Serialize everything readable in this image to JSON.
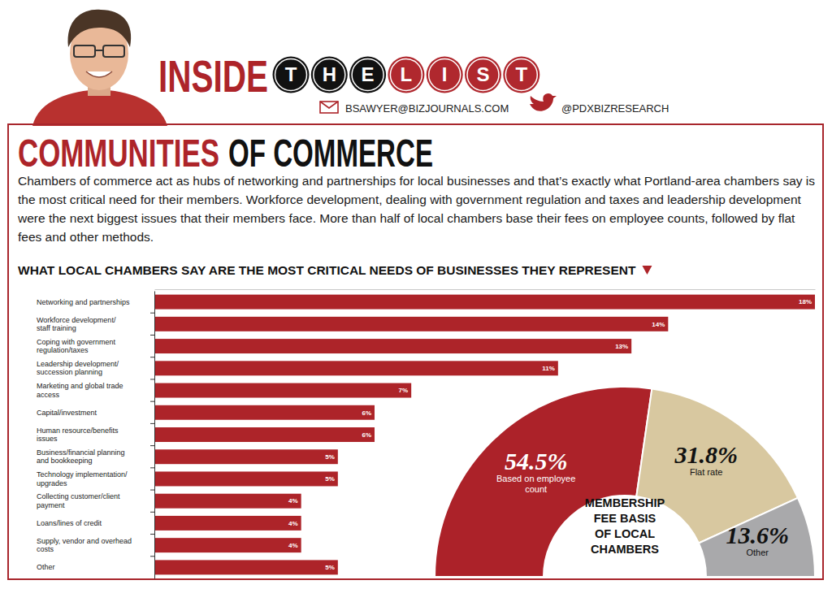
{
  "header": {
    "column": "INSIDE",
    "list_letters": [
      "T",
      "H",
      "E",
      "L",
      "I",
      "S",
      "T"
    ],
    "email": "BSAWYER@BIZJOURNALS.COM",
    "twitter": "@PDXBIZRESEARCH"
  },
  "headline": {
    "highlight": "COMMUNITIES",
    "rest": "OF COMMERCE"
  },
  "intro": "Chambers of commerce act as hubs of networking and partnerships for local businesses and that’s exactly what Portland-area chambers say is the most critical need for their members. Workforce development, dealing with government regulation and taxes and leadership development were the next biggest issues that their members face. More than half of local chambers base their fees on employee counts, followed by flat fees and other methods.",
  "chart_data": [
    {
      "type": "bar",
      "orientation": "horizontal",
      "title": "WHAT LOCAL CHAMBERS SAY ARE THE MOST CRITICAL NEEDS OF BUSINESSES THEY REPRESENT",
      "categories": [
        "Networking and partnerships",
        "Workforce development/ staff training",
        "Coping with government regulation/taxes",
        "Leadership development/ succession planning",
        "Marketing and global trade access",
        "Capital/investment",
        "Human resource/benefits issues",
        "Business/financial planning and bookkeeping",
        "Technology implementation/ upgrades",
        "Collecting customer/client payment",
        "Loans/lines of credit",
        "Supply, vendor and overhead costs",
        "Other"
      ],
      "values": [
        18,
        14,
        13,
        11,
        7,
        6,
        6,
        5,
        5,
        4,
        4,
        4,
        5
      ],
      "value_labels": [
        "18%",
        "14%",
        "13%",
        "11%",
        "7%",
        "6%",
        "6%",
        "5%",
        "5%",
        "4%",
        "4%",
        "4%",
        "5%"
      ],
      "color": "#ad2429",
      "xlim": [
        0,
        18
      ],
      "xticks": [],
      "grid": false,
      "data_labels": true,
      "tick_labels": "y"
    },
    {
      "type": "pie",
      "title": "MEMBERSHIP FEE BASIS OF LOCAL CHAMBERS",
      "categories": [
        "Based on employee count",
        "Flat rate",
        "Other"
      ],
      "values": [
        54.5,
        31.8,
        13.6
      ],
      "value_labels": [
        "54.5%",
        "31.8%",
        "13.6%"
      ],
      "colors": [
        "#ac2229",
        "#d8c8a0",
        "#a9a9ab"
      ],
      "data_labels": true
    }
  ]
}
